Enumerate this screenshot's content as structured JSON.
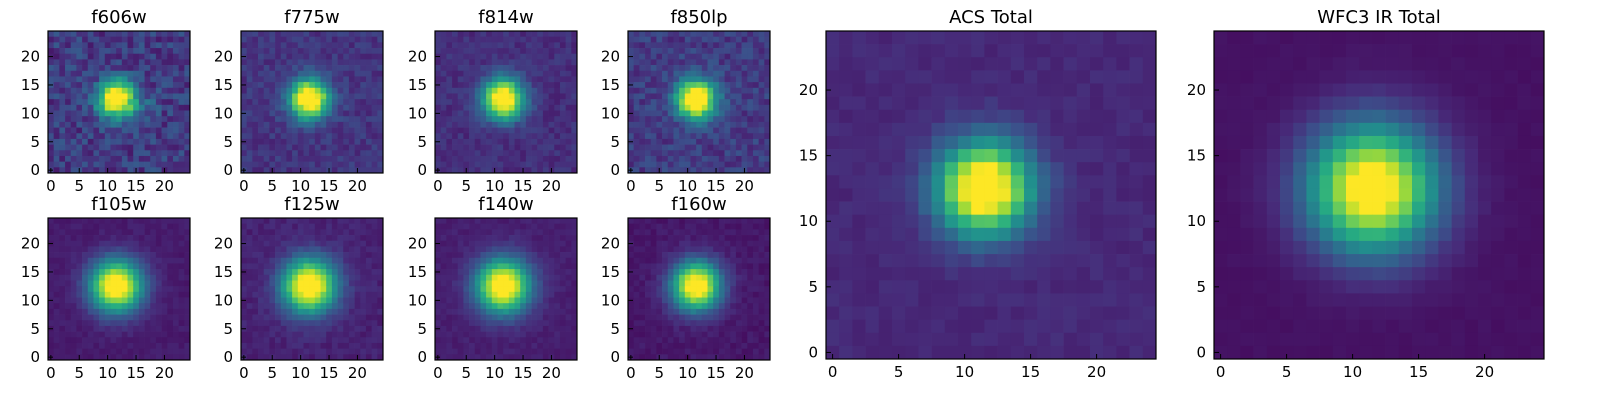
{
  "figure": {
    "description_hidden": false
  },
  "chart_data": [
    {
      "type": "heatmap",
      "title": "f606w",
      "xlabel": "",
      "ylabel": "",
      "xlim": [
        0,
        24
      ],
      "ylim": [
        0,
        24
      ],
      "xticks": [
        0,
        5,
        10,
        15,
        20
      ],
      "yticks": [
        0,
        5,
        10,
        15,
        20
      ],
      "colormap": "viridis",
      "source_center": [
        11.5,
        12.5
      ],
      "source_sigma": 2.2,
      "noise_level": 0.22,
      "background": 0.18,
      "grid": false
    },
    {
      "type": "heatmap",
      "title": "f775w",
      "xlabel": "",
      "ylabel": "",
      "xlim": [
        0,
        24
      ],
      "ylim": [
        0,
        24
      ],
      "xticks": [
        0,
        5,
        10,
        15,
        20
      ],
      "yticks": [
        0,
        5,
        10,
        15,
        20
      ],
      "colormap": "viridis",
      "source_center": [
        11.5,
        12.5
      ],
      "source_sigma": 2.4,
      "noise_level": 0.12,
      "background": 0.16,
      "grid": false
    },
    {
      "type": "heatmap",
      "title": "f814w",
      "xlabel": "",
      "ylabel": "",
      "xlim": [
        0,
        24
      ],
      "ylim": [
        0,
        24
      ],
      "xticks": [
        0,
        5,
        10,
        15,
        20
      ],
      "yticks": [
        0,
        5,
        10,
        15,
        20
      ],
      "colormap": "viridis",
      "source_center": [
        11.5,
        12.5
      ],
      "source_sigma": 2.5,
      "noise_level": 0.1,
      "background": 0.14,
      "grid": false
    },
    {
      "type": "heatmap",
      "title": "f850lp",
      "xlabel": "",
      "ylabel": "",
      "xlim": [
        0,
        24
      ],
      "ylim": [
        0,
        24
      ],
      "xticks": [
        0,
        5,
        10,
        15,
        20
      ],
      "yticks": [
        0,
        5,
        10,
        15,
        20
      ],
      "colormap": "viridis",
      "source_center": [
        11.5,
        12.5
      ],
      "source_sigma": 2.4,
      "noise_level": 0.16,
      "background": 0.18,
      "grid": false
    },
    {
      "type": "heatmap",
      "title": "f105w",
      "xlabel": "",
      "ylabel": "",
      "xlim": [
        0,
        24
      ],
      "ylim": [
        0,
        24
      ],
      "xticks": [
        0,
        5,
        10,
        15,
        20
      ],
      "yticks": [
        0,
        5,
        10,
        15,
        20
      ],
      "colormap": "viridis",
      "source_center": [
        11.5,
        12.5
      ],
      "source_sigma": 3.2,
      "noise_level": 0.05,
      "background": 0.08,
      "grid": false
    },
    {
      "type": "heatmap",
      "title": "f125w",
      "xlabel": "",
      "ylabel": "",
      "xlim": [
        0,
        24
      ],
      "ylim": [
        0,
        24
      ],
      "xticks": [
        0,
        5,
        10,
        15,
        20
      ],
      "yticks": [
        0,
        5,
        10,
        15,
        20
      ],
      "colormap": "viridis",
      "source_center": [
        11.5,
        12.5
      ],
      "source_sigma": 3.3,
      "noise_level": 0.07,
      "background": 0.1,
      "grid": false
    },
    {
      "type": "heatmap",
      "title": "f140w",
      "xlabel": "",
      "ylabel": "",
      "xlim": [
        0,
        24
      ],
      "ylim": [
        0,
        24
      ],
      "xticks": [
        0,
        5,
        10,
        15,
        20
      ],
      "yticks": [
        0,
        5,
        10,
        15,
        20
      ],
      "colormap": "viridis",
      "source_center": [
        11.5,
        12.5
      ],
      "source_sigma": 3.3,
      "noise_level": 0.05,
      "background": 0.09,
      "grid": false
    },
    {
      "type": "heatmap",
      "title": "f160w",
      "xlabel": "",
      "ylabel": "",
      "xlim": [
        0,
        24
      ],
      "ylim": [
        0,
        24
      ],
      "xticks": [
        0,
        5,
        10,
        15,
        20
      ],
      "yticks": [
        0,
        5,
        10,
        15,
        20
      ],
      "colormap": "viridis",
      "source_center": [
        11.5,
        12.5
      ],
      "source_sigma": 3.0,
      "noise_level": 0.06,
      "background": 0.07,
      "grid": false
    },
    {
      "type": "heatmap",
      "title": "ACS Total",
      "xlabel": "",
      "ylabel": "",
      "xlim": [
        0,
        24
      ],
      "ylim": [
        0,
        24
      ],
      "xticks": [
        0,
        5,
        10,
        15,
        20
      ],
      "yticks": [
        0,
        5,
        10,
        15,
        20
      ],
      "colormap": "viridis",
      "source_center": [
        11.5,
        12.5
      ],
      "source_sigma": 2.5,
      "noise_level": 0.05,
      "background": 0.12,
      "grid": false
    },
    {
      "type": "heatmap",
      "title": "WFC3 IR Total",
      "xlabel": "",
      "ylabel": "",
      "xlim": [
        0,
        24
      ],
      "ylim": [
        0,
        24
      ],
      "xticks": [
        0,
        5,
        10,
        15,
        20
      ],
      "yticks": [
        0,
        5,
        10,
        15,
        20
      ],
      "colormap": "viridis",
      "source_center": [
        11.5,
        12.5
      ],
      "source_sigma": 3.4,
      "noise_level": 0.02,
      "background": 0.05,
      "grid": false
    }
  ]
}
